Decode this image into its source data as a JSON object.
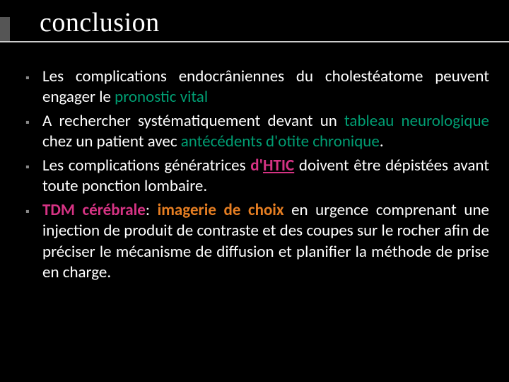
{
  "title": "conclusion",
  "colors": {
    "background": "#000000",
    "text": "#ffffff",
    "bullet": "#888888",
    "underline": "#cccccc",
    "green": "#009e73",
    "magenta": "#d63384",
    "orange": "#e67e22"
  },
  "bullets": {
    "b1": {
      "t1": "Les complications endocrâniennes du cholestéatome peuvent engager le ",
      "t2": "pronostic vital"
    },
    "b2": {
      "t1": " A rechercher systématiquement devant un ",
      "t2": "tableau neurologique",
      "t3": "  chez un patient avec ",
      "t4": "antécédents d'otite chronique",
      "t5": "."
    },
    "b3": {
      "t1": "Les complications génératrices ",
      "t2": "d'",
      "t3": "HTIC",
      "t4": " doivent être dépistées avant toute ponction lombaire."
    },
    "b4": {
      "t1": "TDM cérébrale",
      "t2": ": ",
      "t3": "imagerie de choix",
      "t4": " en urgence comprenant  une injection de produit de contraste et des coupes sur le rocher afin de préciser le mécanisme de diffusion et planifier la méthode de prise en charge."
    }
  }
}
